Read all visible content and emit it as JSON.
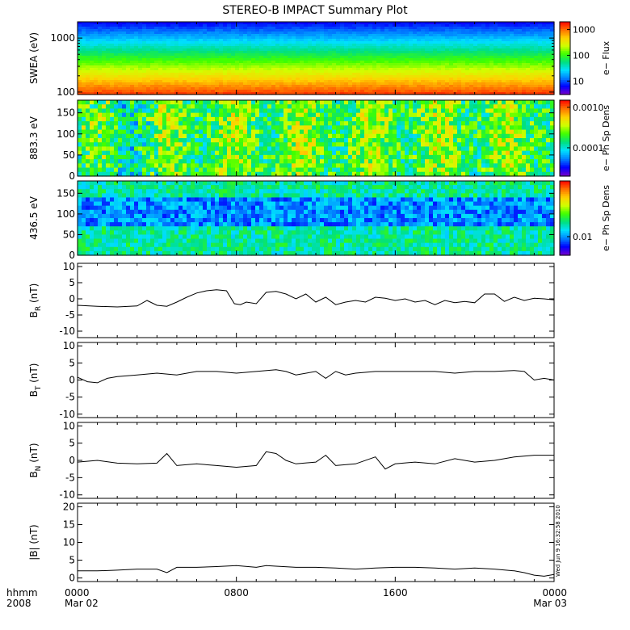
{
  "title": "STEREO-B IMPACT Summary Plot",
  "stamp": "Wed Jun  9 16:32:58 2010",
  "x_axis": {
    "corner_top": "hhmm",
    "corner_bottom": "2008",
    "ticks": [
      {
        "hours": 0,
        "hhmm": "0000",
        "date": "Mar 02"
      },
      {
        "hours": 8,
        "hhmm": "0800",
        "date": ""
      },
      {
        "hours": 16,
        "hhmm": "1600",
        "date": ""
      },
      {
        "hours": 24,
        "hhmm": "0000",
        "date": "Mar 03"
      }
    ],
    "range_hours": [
      0,
      24
    ]
  },
  "colors": {
    "rainbow": [
      "#7a00c8",
      "#0000ff",
      "#0080ff",
      "#00e0ff",
      "#00e080",
      "#40ff00",
      "#d0ff00",
      "#ffd000",
      "#ff7000",
      "#ff0000"
    ]
  },
  "chart_data": [
    {
      "type": "heatmap",
      "panel": "swea",
      "ylabel": "SWEA (eV)",
      "ylim": [
        90,
        2000
      ],
      "yscale": "log",
      "yticks": [
        {
          "v": 100,
          "label": "100"
        },
        {
          "v": 1000,
          "label": "1000"
        }
      ],
      "colorbar": {
        "label": "e− Flux",
        "scale": "log",
        "range": [
          3,
          2000
        ],
        "ticks": [
          {
            "v": 10,
            "label": "10"
          },
          {
            "v": 100,
            "label": "100"
          },
          {
            "v": 1000,
            "label": "1000"
          }
        ]
      },
      "description": "energy-dependent flux: low at top (~1000+ eV), high at bottom (~100 eV), roughly constant in time"
    },
    {
      "type": "heatmap",
      "panel": "pad883",
      "ylabel": "883.3 eV",
      "ylim": [
        0,
        180
      ],
      "yticks": [
        {
          "v": 0,
          "label": "0"
        },
        {
          "v": 50,
          "label": "50"
        },
        {
          "v": 100,
          "label": "100"
        },
        {
          "v": 150,
          "label": "150"
        }
      ],
      "colorbar": {
        "label": "e− Ph Sp Dens",
        "scale": "log",
        "range": [
          2e-05,
          0.0015
        ],
        "ticks": [
          {
            "v": 0.0001,
            "label": "0.0001"
          },
          {
            "v": 0.001,
            "label": "0.0010"
          }
        ]
      }
    },
    {
      "type": "heatmap",
      "panel": "pad436",
      "ylabel": "436.5 eV",
      "ylim": [
        0,
        180
      ],
      "yticks": [
        {
          "v": 0,
          "label": "0"
        },
        {
          "v": 50,
          "label": "50"
        },
        {
          "v": 100,
          "label": "100"
        },
        {
          "v": 150,
          "label": "150"
        }
      ],
      "colorbar": {
        "label": "e− Ph Sp Dens",
        "scale": "log",
        "range": [
          0.005,
          0.08
        ],
        "ticks": [
          {
            "v": 0.01,
            "label": "0.01"
          }
        ]
      }
    },
    {
      "type": "line",
      "panel": "br",
      "ylabel_main": "B",
      "ylabel_sub": "R",
      "ylabel_unit": " (nT)",
      "ylim": [
        -12,
        11
      ],
      "yticks": [
        -10,
        -5,
        0,
        5,
        10
      ],
      "x_hours": [
        0,
        1,
        2,
        3,
        3.5,
        4,
        4.5,
        5,
        5.5,
        6,
        6.5,
        7,
        7.5,
        7.9,
        8.2,
        8.5,
        9,
        9.5,
        10,
        10.5,
        11,
        11.5,
        12,
        12.5,
        13,
        13.5,
        14,
        14.5,
        15,
        15.5,
        16,
        16.5,
        17,
        17.5,
        18,
        18.5,
        19,
        19.5,
        20,
        20.5,
        21,
        21.5,
        22,
        22.5,
        23,
        23.5,
        24
      ],
      "y": [
        -2,
        -2.3,
        -2.5,
        -2.2,
        -0.5,
        -2,
        -2.3,
        -1,
        0.5,
        1.8,
        2.5,
        2.8,
        2.5,
        -1.5,
        -1.8,
        -1,
        -1.5,
        2,
        2.3,
        1.5,
        0,
        1.5,
        -1,
        0.5,
        -1.8,
        -1,
        -0.5,
        -1,
        0.5,
        0.2,
        -0.5,
        0,
        -1,
        -0.5,
        -1.8,
        -0.5,
        -1.2,
        -0.8,
        -1.2,
        1.5,
        1.5,
        -0.8,
        0.5,
        -0.5,
        0.2,
        0,
        -0.3
      ]
    },
    {
      "type": "line",
      "panel": "bt",
      "ylabel_main": "B",
      "ylabel_sub": "T",
      "ylabel_unit": " (nT)",
      "ylim": [
        -11,
        11
      ],
      "yticks": [
        -10,
        -5,
        0,
        5,
        10
      ],
      "x_hours": [
        0,
        0.5,
        1,
        1.5,
        2,
        3,
        4,
        5,
        6,
        7,
        8,
        9,
        10,
        10.5,
        11,
        12,
        12.5,
        13,
        13.5,
        14,
        15,
        16,
        17,
        18,
        19,
        20,
        21,
        22,
        22.5,
        23,
        23.5,
        24
      ],
      "y": [
        0.8,
        -0.5,
        -0.8,
        0.5,
        1,
        1.5,
        2,
        1.5,
        2.5,
        2.5,
        2,
        2.5,
        3,
        2.5,
        1.5,
        2.5,
        0.5,
        2.5,
        1.5,
        2,
        2.5,
        2.5,
        2.5,
        2.5,
        2,
        2.5,
        2.5,
        2.8,
        2.5,
        0,
        0.5,
        0
      ]
    },
    {
      "type": "line",
      "panel": "bn",
      "ylabel_main": "B",
      "ylabel_sub": "N",
      "ylabel_unit": " (nT)",
      "ylim": [
        -11,
        11
      ],
      "yticks": [
        -10,
        -5,
        0,
        5,
        10
      ],
      "x_hours": [
        0,
        1,
        2,
        3,
        4,
        4.5,
        5,
        6,
        7,
        8,
        9,
        9.5,
        10,
        10.5,
        11,
        12,
        12.5,
        13,
        14,
        15,
        15.5,
        16,
        17,
        18,
        19,
        20,
        21,
        22,
        23,
        24
      ],
      "y": [
        -0.5,
        0,
        -0.8,
        -1,
        -0.8,
        2,
        -1.5,
        -1,
        -1.5,
        -2,
        -1.5,
        2.5,
        2,
        0,
        -1,
        -0.5,
        1.5,
        -1.5,
        -1,
        1,
        -2.5,
        -1,
        -0.5,
        -1,
        0.5,
        -0.5,
        0,
        1,
        1.5,
        1.5
      ]
    },
    {
      "type": "line",
      "panel": "bmag",
      "ylabel_main": "|B|",
      "ylabel_sub": "",
      "ylabel_unit": " (nT)",
      "ylim": [
        -1,
        21
      ],
      "yticks": [
        0,
        5,
        10,
        15,
        20
      ],
      "x_hours": [
        0,
        1,
        2,
        3,
        4,
        4.5,
        5,
        6,
        7,
        8,
        9,
        9.5,
        10,
        11,
        12,
        13,
        14,
        15,
        16,
        17,
        18,
        19,
        20,
        21,
        22,
        22.5,
        23,
        23.5,
        24
      ],
      "y": [
        2,
        2,
        2.2,
        2.5,
        2.5,
        1.5,
        3,
        3,
        3.2,
        3.5,
        3,
        3.5,
        3.3,
        3,
        3,
        2.8,
        2.5,
        2.8,
        3,
        3,
        2.8,
        2.5,
        2.8,
        2.5,
        2,
        1.5,
        0.8,
        0.5,
        1
      ]
    }
  ]
}
